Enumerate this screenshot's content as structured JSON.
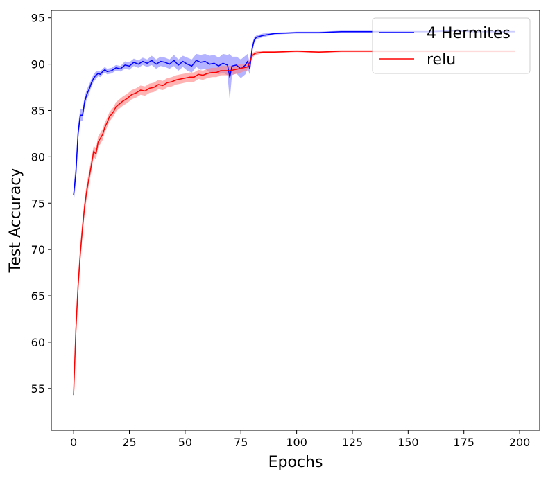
{
  "chart_data": {
    "type": "line",
    "xlabel": "Epochs",
    "ylabel": "Test Accuracy",
    "xlim": [
      -10,
      209
    ],
    "ylim": [
      50.5,
      95.8
    ],
    "xticks": [
      0,
      25,
      50,
      75,
      100,
      125,
      150,
      175,
      200
    ],
    "yticks": [
      55,
      60,
      65,
      70,
      75,
      80,
      85,
      90,
      95
    ],
    "legend_position": "upper-right",
    "grid": false,
    "series": [
      {
        "name": "4 Hermites",
        "color": "#0000ff",
        "band_color": "#8080ff",
        "x": [
          0,
          1,
          2,
          3,
          4,
          5,
          6,
          7,
          8,
          9,
          10,
          11,
          12,
          13,
          14,
          15,
          17,
          19,
          21,
          23,
          25,
          27,
          29,
          31,
          33,
          35,
          37,
          39,
          41,
          43,
          45,
          47,
          49,
          51,
          53,
          55,
          57,
          59,
          61,
          63,
          65,
          67,
          69,
          70,
          71,
          73,
          75,
          77,
          78,
          79,
          80,
          81,
          82,
          85,
          90,
          100,
          110,
          120,
          130,
          140,
          150,
          160,
          170,
          180,
          190,
          198
        ],
        "values": [
          75.9,
          78.2,
          82.6,
          84.5,
          84.5,
          86.0,
          86.8,
          87.3,
          88.0,
          88.5,
          88.8,
          89.0,
          88.9,
          89.2,
          89.4,
          89.2,
          89.3,
          89.6,
          89.5,
          89.9,
          89.8,
          90.2,
          90.0,
          90.3,
          90.1,
          90.4,
          90.0,
          90.3,
          90.2,
          90.0,
          90.4,
          89.9,
          90.3,
          90.0,
          89.8,
          90.4,
          90.2,
          90.3,
          90.0,
          90.1,
          89.8,
          90.1,
          89.9,
          88.6,
          89.8,
          89.9,
          89.5,
          89.9,
          90.3,
          89.5,
          91.6,
          92.6,
          92.9,
          93.1,
          93.3,
          93.4,
          93.4,
          93.5,
          93.5,
          93.5,
          93.5,
          93.5,
          93.6,
          93.5,
          93.5,
          93.5
        ],
        "spread": [
          1.0,
          1.0,
          0.8,
          0.7,
          0.6,
          0.6,
          0.5,
          0.5,
          0.4,
          0.4,
          0.4,
          0.3,
          0.3,
          0.3,
          0.3,
          0.3,
          0.3,
          0.3,
          0.3,
          0.4,
          0.4,
          0.4,
          0.4,
          0.4,
          0.4,
          0.5,
          0.5,
          0.5,
          0.5,
          0.5,
          0.6,
          0.6,
          0.6,
          0.7,
          0.7,
          0.7,
          0.8,
          0.8,
          0.9,
          0.9,
          0.9,
          1.0,
          1.1,
          2.5,
          1.0,
          0.9,
          1.0,
          1.0,
          0.8,
          0.6,
          0.5,
          0.3,
          0.2,
          0.2,
          0.1,
          0.1,
          0.1,
          0.1,
          0.1,
          0.1,
          0.1,
          0.1,
          0.1,
          0.1,
          0.1,
          0.1
        ]
      },
      {
        "name": "relu",
        "color": "#ff0000",
        "band_color": "#ff8080",
        "x": [
          0,
          1,
          2,
          3,
          4,
          5,
          6,
          7,
          8,
          9,
          10,
          11,
          12,
          13,
          14,
          15,
          16,
          17,
          18,
          19,
          20,
          22,
          24,
          26,
          28,
          30,
          32,
          34,
          36,
          38,
          40,
          42,
          44,
          46,
          48,
          50,
          52,
          54,
          56,
          58,
          60,
          62,
          64,
          66,
          68,
          70,
          72,
          74,
          76,
          78,
          79,
          80,
          81,
          82,
          85,
          90,
          100,
          110,
          120,
          130,
          140,
          150,
          160,
          170,
          180,
          190,
          198
        ],
        "values": [
          54.3,
          61.3,
          66.1,
          69.6,
          72.4,
          74.8,
          76.5,
          77.8,
          79.2,
          80.6,
          80.3,
          81.6,
          82.0,
          82.4,
          83.2,
          83.7,
          84.3,
          84.6,
          84.9,
          85.4,
          85.6,
          86.0,
          86.3,
          86.7,
          86.9,
          87.2,
          87.1,
          87.4,
          87.5,
          87.8,
          87.7,
          88.0,
          88.1,
          88.3,
          88.4,
          88.5,
          88.6,
          88.6,
          88.9,
          88.8,
          89.0,
          89.1,
          89.1,
          89.3,
          89.3,
          89.3,
          89.4,
          89.5,
          89.6,
          89.7,
          90.2,
          90.9,
          91.1,
          91.2,
          91.3,
          91.3,
          91.4,
          91.3,
          91.4,
          91.4,
          91.4,
          91.4,
          91.4,
          91.4,
          91.4,
          91.4,
          91.4
        ],
        "spread": [
          1.5,
          1.3,
          1.1,
          1.0,
          0.9,
          0.8,
          0.8,
          0.7,
          0.7,
          0.6,
          0.6,
          0.6,
          0.6,
          0.6,
          0.5,
          0.5,
          0.5,
          0.5,
          0.5,
          0.5,
          0.5,
          0.5,
          0.5,
          0.5,
          0.5,
          0.5,
          0.5,
          0.5,
          0.5,
          0.5,
          0.5,
          0.5,
          0.5,
          0.5,
          0.5,
          0.5,
          0.5,
          0.5,
          0.5,
          0.5,
          0.5,
          0.5,
          0.5,
          0.5,
          0.5,
          0.5,
          0.5,
          0.5,
          0.4,
          0.4,
          0.4,
          0.3,
          0.2,
          0.2,
          0.1,
          0.1,
          0.1,
          0.1,
          0.1,
          0.1,
          0.1,
          0.1,
          0.1,
          0.1,
          0.1,
          0.1,
          0.1
        ]
      }
    ]
  }
}
